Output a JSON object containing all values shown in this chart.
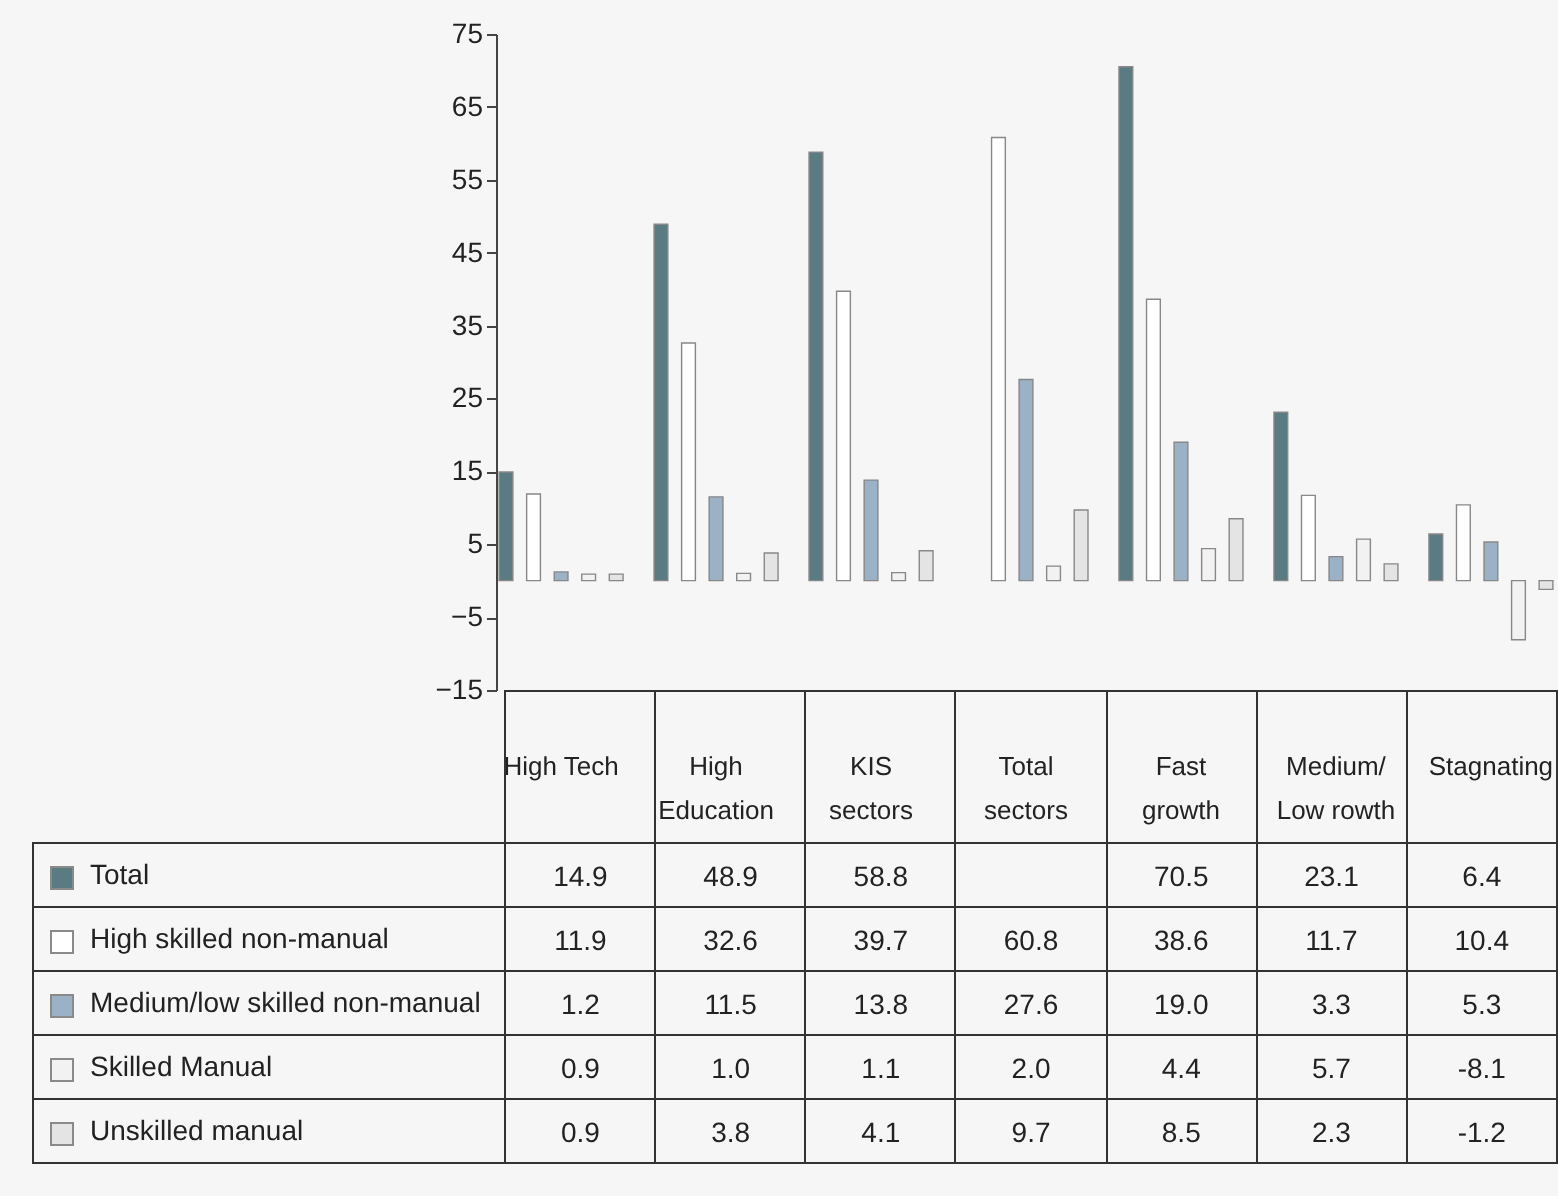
{
  "chart_data": {
    "type": "bar",
    "categories": [
      "High Tech",
      "High Education",
      "KIS sectors",
      "Total sectors",
      "Fast growth",
      "Medium/ Low rowth",
      "Stagnating"
    ],
    "series": [
      {
        "name": "Total",
        "color": "#5b7b82",
        "values": [
          14.9,
          48.9,
          58.8,
          null,
          70.5,
          23.1,
          6.4
        ],
        "value_labels": [
          "14.9",
          "48.9",
          "58.8",
          null,
          "70.5",
          "23.1",
          "6.4"
        ]
      },
      {
        "name": "High skilled non-manual",
        "color": "#ffffff",
        "values": [
          11.9,
          32.6,
          39.7,
          60.8,
          38.6,
          11.7,
          10.4
        ],
        "value_labels": [
          "11.9",
          "32.6",
          "39.7",
          "60.8",
          "38.6",
          "11.7",
          "10.4"
        ]
      },
      {
        "name": "Medium/low skilled non-manual",
        "color": "#9bb1c6",
        "values": [
          1.2,
          11.5,
          13.8,
          27.6,
          19.0,
          3.3,
          5.3
        ],
        "value_labels": [
          "1.2",
          "11.5",
          "13.8",
          "27.6",
          "19.0",
          "3.3",
          "5.3"
        ]
      },
      {
        "name": "Skilled Manual",
        "color": "#f2f2f2",
        "values": [
          0.9,
          1.0,
          1.1,
          2.0,
          4.4,
          5.7,
          -8.1
        ],
        "value_labels": [
          "0.9",
          "1.0",
          "1.1",
          "2.0",
          "4.4",
          "5.7",
          "-8.1"
        ]
      },
      {
        "name": "Unskilled manual",
        "color": "#e4e4e4",
        "values": [
          0.9,
          3.8,
          4.1,
          9.7,
          8.5,
          2.3,
          -1.2
        ],
        "value_labels": [
          "0.9",
          "3.8",
          "4.1",
          "9.7",
          "8.5",
          "2.3",
          "-1.2"
        ]
      }
    ],
    "ylim": [
      -15,
      75
    ],
    "yticks": [
      -15,
      -5,
      5,
      15,
      25,
      35,
      45,
      55,
      65,
      75
    ],
    "legend": "bottom"
  }
}
